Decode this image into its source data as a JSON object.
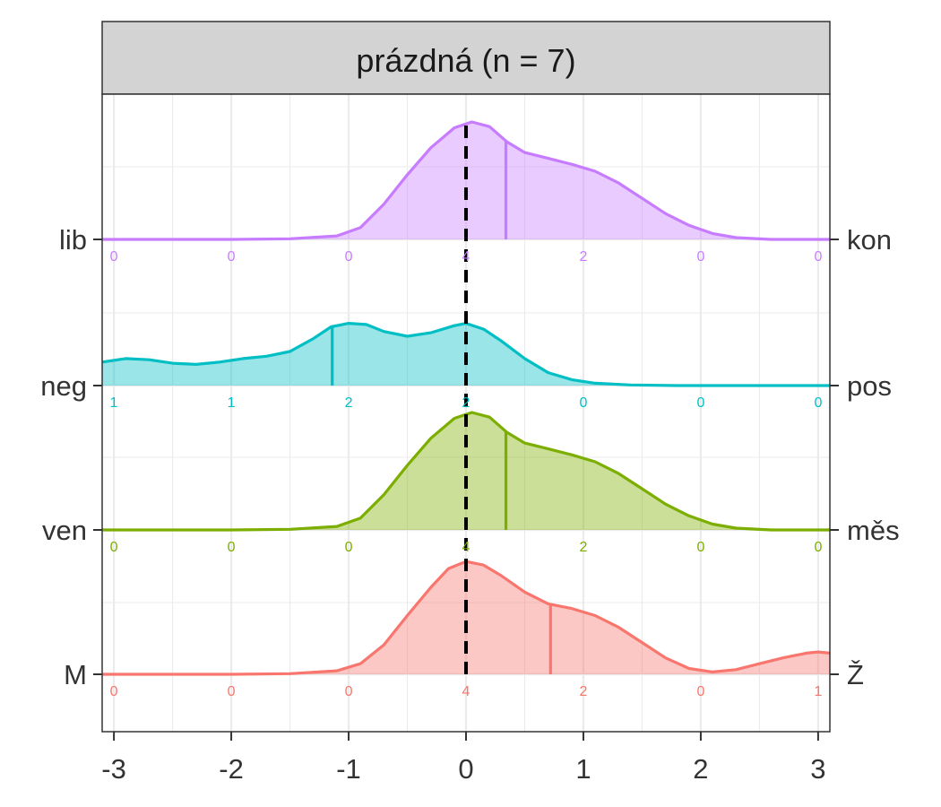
{
  "facet": {
    "title": "prázdná (n = 7)"
  },
  "chart_data": {
    "type": "area",
    "subtype": "ridgeline-density",
    "xlim": [
      -3.1,
      3.1
    ],
    "x_ticks": [
      -3,
      -2,
      -1,
      0,
      1,
      2,
      3
    ],
    "x_tick_labels": [
      "-3",
      "-2",
      "-1",
      "0",
      "1",
      "2",
      "3"
    ],
    "reference_line": {
      "x": 0,
      "style": "dashed",
      "color": "#000000"
    },
    "count_positions": [
      -3,
      -2,
      -1,
      0,
      1,
      2,
      3
    ],
    "grid": true,
    "series": [
      {
        "left_label": "lib",
        "right_label": "kon",
        "color": "#C77CFF",
        "mean": 0.34,
        "counts": [
          0,
          0,
          0,
          4,
          2,
          0,
          0
        ],
        "density": [
          [
            -3.1,
            0
          ],
          [
            -2.0,
            0
          ],
          [
            -1.5,
            0.005
          ],
          [
            -1.1,
            0.03
          ],
          [
            -0.9,
            0.1
          ],
          [
            -0.7,
            0.3
          ],
          [
            -0.5,
            0.55
          ],
          [
            -0.3,
            0.78
          ],
          [
            -0.1,
            0.95
          ],
          [
            0.05,
            1.0
          ],
          [
            0.2,
            0.96
          ],
          [
            0.35,
            0.83
          ],
          [
            0.5,
            0.74
          ],
          [
            0.7,
            0.69
          ],
          [
            0.9,
            0.64
          ],
          [
            1.1,
            0.58
          ],
          [
            1.3,
            0.48
          ],
          [
            1.5,
            0.35
          ],
          [
            1.7,
            0.22
          ],
          [
            1.9,
            0.12
          ],
          [
            2.1,
            0.05
          ],
          [
            2.3,
            0.015
          ],
          [
            2.6,
            0
          ],
          [
            3.1,
            0
          ]
        ]
      },
      {
        "left_label": "neg",
        "right_label": "pos",
        "color": "#00BFC4",
        "mean": -1.14,
        "counts": [
          1,
          1,
          2,
          2,
          0,
          0,
          0
        ],
        "density": [
          [
            -3.1,
            0.2
          ],
          [
            -2.9,
            0.23
          ],
          [
            -2.7,
            0.22
          ],
          [
            -2.5,
            0.19
          ],
          [
            -2.3,
            0.18
          ],
          [
            -2.1,
            0.2
          ],
          [
            -1.9,
            0.23
          ],
          [
            -1.7,
            0.25
          ],
          [
            -1.5,
            0.29
          ],
          [
            -1.3,
            0.4
          ],
          [
            -1.15,
            0.5
          ],
          [
            -1.0,
            0.53
          ],
          [
            -0.85,
            0.52
          ],
          [
            -0.7,
            0.46
          ],
          [
            -0.5,
            0.42
          ],
          [
            -0.3,
            0.45
          ],
          [
            -0.1,
            0.51
          ],
          [
            0.0,
            0.53
          ],
          [
            0.15,
            0.48
          ],
          [
            0.3,
            0.38
          ],
          [
            0.5,
            0.23
          ],
          [
            0.7,
            0.11
          ],
          [
            0.9,
            0.05
          ],
          [
            1.1,
            0.02
          ],
          [
            1.4,
            0.005
          ],
          [
            1.8,
            0
          ],
          [
            3.1,
            0
          ]
        ]
      },
      {
        "left_label": "ven",
        "right_label": "měs",
        "color": "#7CAE00",
        "mean": 0.34,
        "counts": [
          0,
          0,
          0,
          4,
          2,
          0,
          0
        ],
        "density": [
          [
            -3.1,
            0
          ],
          [
            -2.0,
            0
          ],
          [
            -1.5,
            0.005
          ],
          [
            -1.1,
            0.03
          ],
          [
            -0.9,
            0.1
          ],
          [
            -0.7,
            0.3
          ],
          [
            -0.5,
            0.55
          ],
          [
            -0.3,
            0.78
          ],
          [
            -0.1,
            0.95
          ],
          [
            0.05,
            1.0
          ],
          [
            0.2,
            0.96
          ],
          [
            0.35,
            0.83
          ],
          [
            0.5,
            0.74
          ],
          [
            0.7,
            0.69
          ],
          [
            0.9,
            0.64
          ],
          [
            1.1,
            0.58
          ],
          [
            1.3,
            0.48
          ],
          [
            1.5,
            0.35
          ],
          [
            1.7,
            0.22
          ],
          [
            1.9,
            0.12
          ],
          [
            2.1,
            0.05
          ],
          [
            2.3,
            0.015
          ],
          [
            2.6,
            0
          ],
          [
            3.1,
            0
          ]
        ]
      },
      {
        "left_label": "M",
        "right_label": "Ž",
        "color": "#F8766D",
        "mean": 0.72,
        "counts": [
          0,
          0,
          0,
          4,
          2,
          0,
          1
        ],
        "density": [
          [
            -3.1,
            0
          ],
          [
            -2.0,
            0
          ],
          [
            -1.5,
            0.005
          ],
          [
            -1.1,
            0.03
          ],
          [
            -0.9,
            0.09
          ],
          [
            -0.7,
            0.25
          ],
          [
            -0.5,
            0.5
          ],
          [
            -0.3,
            0.74
          ],
          [
            -0.15,
            0.9
          ],
          [
            0.0,
            0.96
          ],
          [
            0.15,
            0.93
          ],
          [
            0.3,
            0.84
          ],
          [
            0.5,
            0.7
          ],
          [
            0.7,
            0.6
          ],
          [
            0.9,
            0.56
          ],
          [
            1.1,
            0.5
          ],
          [
            1.3,
            0.4
          ],
          [
            1.5,
            0.27
          ],
          [
            1.7,
            0.14
          ],
          [
            1.9,
            0.05
          ],
          [
            2.1,
            0.02
          ],
          [
            2.3,
            0.04
          ],
          [
            2.5,
            0.09
          ],
          [
            2.7,
            0.14
          ],
          [
            2.9,
            0.18
          ],
          [
            3.0,
            0.19
          ],
          [
            3.1,
            0.18
          ]
        ]
      }
    ]
  }
}
